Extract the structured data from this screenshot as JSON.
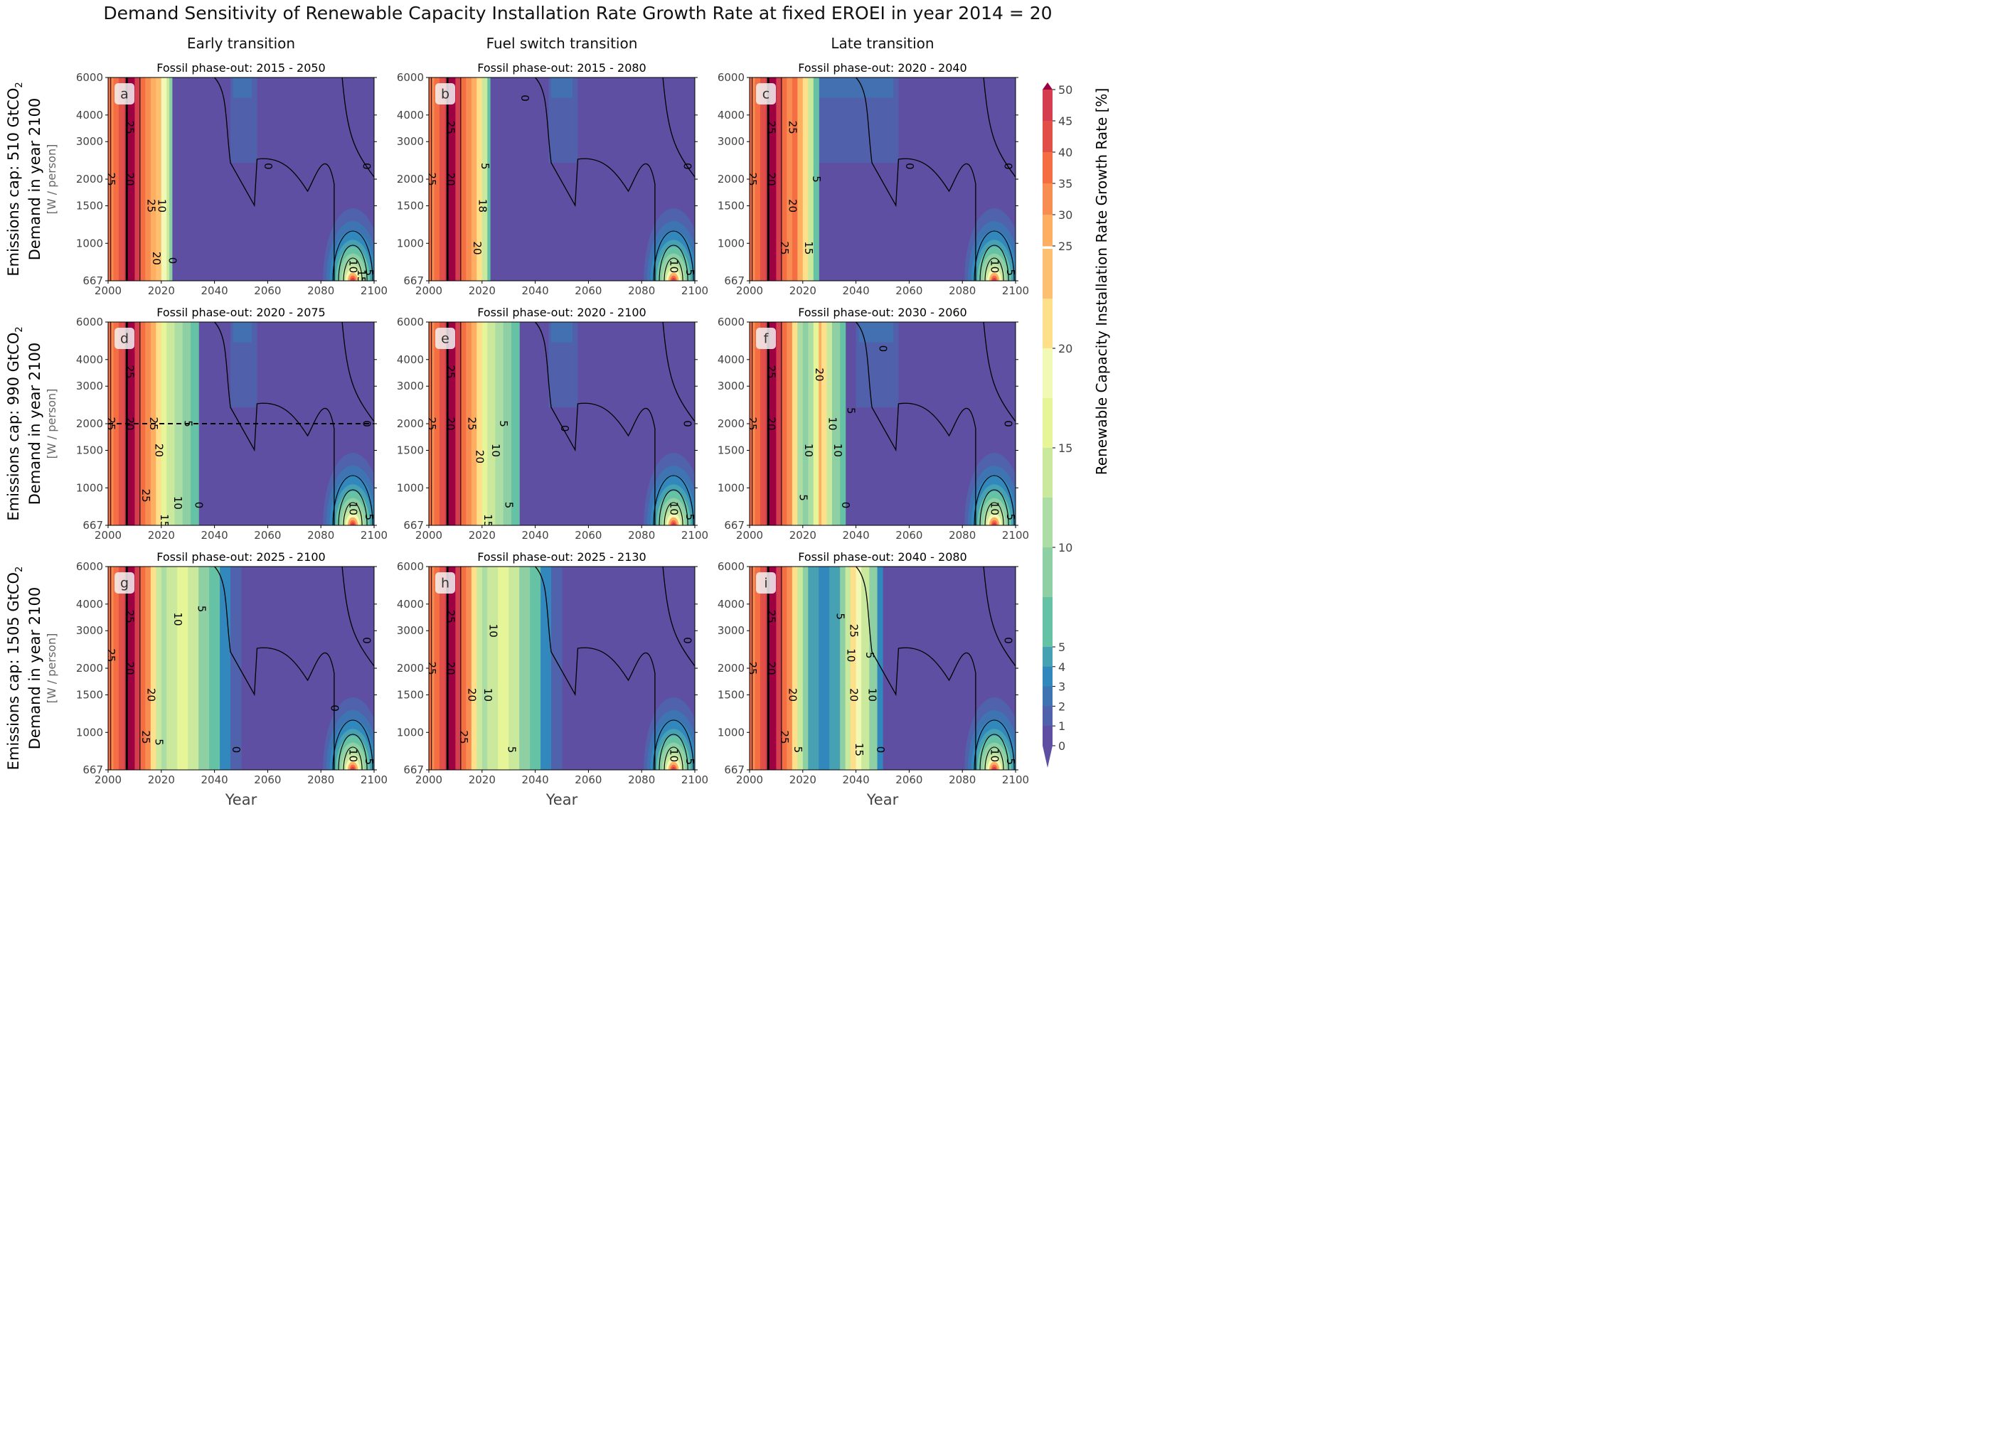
{
  "figure_title": "Demand Sensitivity of Renewable Capacity Installation Rate Growth Rate at fixed EROEI in year 2014 = 20",
  "column_titles": [
    "Early transition",
    "Fuel switch transition",
    "Late transition"
  ],
  "row_titles": [
    {
      "main": "Emissions cap: 510 GtCO",
      "sub": "2",
      "line2": "Demand in year 2100",
      "unit": "[W / person]"
    },
    {
      "main": "Emissions cap: 990 GtCO",
      "sub": "2",
      "line2": "Demand in year 2100",
      "unit": "[W / person]"
    },
    {
      "main": "Emissions cap: 1505 GtCO",
      "sub": "2",
      "line2": "Demand in year 2100",
      "unit": "[W / person]"
    }
  ],
  "colorbar": {
    "label": "Renewable Capacity Installation Rate Growth Rate [%]",
    "ticks": [
      "0",
      "1",
      "2",
      "3",
      "4",
      "5",
      "10",
      "15",
      "20",
      "25",
      "30",
      "35",
      "40",
      "45",
      "50"
    ],
    "colors": {
      "0": "#5e4fa2",
      "1": "#4f62ab",
      "2": "#3f74b2",
      "3": "#3288bd",
      "4": "#46a1b3",
      "5": "#66c2a5",
      "7.5": "#8ed0a4",
      "10": "#abdda4",
      "12.5": "#cbe99d",
      "15": "#e6f598",
      "17.5": "#f2f9b4",
      "20": "#fee08b",
      "22.5": "#fdc070",
      "25": "#fdae61",
      "30": "#f88d52",
      "35": "#f46d43",
      "40": "#e05049",
      "45": "#d53e4f",
      "50": "#9e0142"
    }
  },
  "chart_data": {
    "type": "heatmap",
    "x_axis": {
      "label": "Year",
      "range": [
        2000,
        2100
      ],
      "ticks": [
        "2000",
        "2020",
        "2040",
        "2060",
        "2080",
        "2100"
      ]
    },
    "y_axis": {
      "label": "Demand in year 2100 [W / person]",
      "scale": "log",
      "range": [
        667,
        6000
      ],
      "ticks": [
        "667",
        "1000",
        "1500",
        "2000",
        "3000",
        "4000",
        "6000"
      ]
    },
    "contour_levels": [
      0,
      5,
      10,
      15,
      20,
      25
    ],
    "panels": [
      {
        "letter": "a",
        "title": "Fossil phase-out: 2015 - 2050",
        "dashed_line_at": null,
        "labels": [
          {
            "t": "25",
            "year": 2001,
            "demand": 2000
          },
          {
            "t": "25",
            "year": 2008,
            "demand": 3500
          },
          {
            "t": "20",
            "year": 2008,
            "demand": 2000
          },
          {
            "t": "25",
            "year": 2016,
            "demand": 1500
          },
          {
            "t": "10",
            "year": 2020,
            "demand": 1500
          },
          {
            "t": "20",
            "year": 2018,
            "demand": 850
          },
          {
            "t": "0",
            "year": 2024,
            "demand": 830
          },
          {
            "t": "0",
            "year": 2060,
            "demand": 2300
          },
          {
            "t": "0",
            "year": 2097,
            "demand": 2300
          },
          {
            "t": "10",
            "year": 2092,
            "demand": 780
          },
          {
            "t": "5",
            "year": 2098,
            "demand": 730
          },
          {
            "t": "15",
            "year": 2095,
            "demand": 700
          }
        ]
      },
      {
        "letter": "b",
        "title": "Fossil phase-out: 2015 - 2080",
        "dashed_line_at": null,
        "labels": [
          {
            "t": "25",
            "year": 2001,
            "demand": 2000
          },
          {
            "t": "25",
            "year": 2008,
            "demand": 3500
          },
          {
            "t": "20",
            "year": 2008,
            "demand": 2000
          },
          {
            "t": "18",
            "year": 2020,
            "demand": 1500
          },
          {
            "t": "20",
            "year": 2018,
            "demand": 950
          },
          {
            "t": "5",
            "year": 2021,
            "demand": 2300
          },
          {
            "t": "0",
            "year": 2036,
            "demand": 4800
          },
          {
            "t": "0",
            "year": 2097,
            "demand": 2300
          },
          {
            "t": "10",
            "year": 2092,
            "demand": 780
          },
          {
            "t": "5",
            "year": 2098,
            "demand": 730
          }
        ]
      },
      {
        "letter": "c",
        "title": "Fossil phase-out: 2020 - 2040",
        "dashed_line_at": null,
        "labels": [
          {
            "t": "25",
            "year": 2001,
            "demand": 2000
          },
          {
            "t": "25",
            "year": 2008,
            "demand": 3500
          },
          {
            "t": "20",
            "year": 2008,
            "demand": 2000
          },
          {
            "t": "25",
            "year": 2016,
            "demand": 3500
          },
          {
            "t": "20",
            "year": 2016,
            "demand": 1500
          },
          {
            "t": "5",
            "year": 2025,
            "demand": 2000
          },
          {
            "t": "25",
            "year": 2013,
            "demand": 950
          },
          {
            "t": "15",
            "year": 2022,
            "demand": 950
          },
          {
            "t": "0",
            "year": 2060,
            "demand": 2300
          },
          {
            "t": "0",
            "year": 2097,
            "demand": 2300
          },
          {
            "t": "10",
            "year": 2092,
            "demand": 780
          },
          {
            "t": "5",
            "year": 2098,
            "demand": 730
          }
        ]
      },
      {
        "letter": "d",
        "title": "Fossil phase-out: 2020 - 2075",
        "dashed_line_at": 2000,
        "labels": [
          {
            "t": "25",
            "year": 2001,
            "demand": 2000
          },
          {
            "t": "25",
            "year": 2008,
            "demand": 3500
          },
          {
            "t": "20",
            "year": 2008,
            "demand": 2000
          },
          {
            "t": "25",
            "year": 2017,
            "demand": 2000
          },
          {
            "t": "20",
            "year": 2019,
            "demand": 1500
          },
          {
            "t": "5",
            "year": 2030,
            "demand": 2000
          },
          {
            "t": "25",
            "year": 2014,
            "demand": 920
          },
          {
            "t": "10",
            "year": 2026,
            "demand": 850
          },
          {
            "t": "15",
            "year": 2021,
            "demand": 700
          },
          {
            "t": "0",
            "year": 2034,
            "demand": 830
          },
          {
            "t": "0",
            "year": 2097,
            "demand": 2000
          },
          {
            "t": "10",
            "year": 2092,
            "demand": 800
          },
          {
            "t": "5",
            "year": 2098,
            "demand": 730
          }
        ]
      },
      {
        "letter": "e",
        "title": "Fossil phase-out: 2020 - 2100",
        "dashed_line_at": null,
        "labels": [
          {
            "t": "25",
            "year": 2001,
            "demand": 2000
          },
          {
            "t": "25",
            "year": 2008,
            "demand": 3500
          },
          {
            "t": "20",
            "year": 2008,
            "demand": 2000
          },
          {
            "t": "25",
            "year": 2016,
            "demand": 2000
          },
          {
            "t": "20",
            "year": 2019,
            "demand": 1400
          },
          {
            "t": "10",
            "year": 2025,
            "demand": 1500
          },
          {
            "t": "5",
            "year": 2028,
            "demand": 2000
          },
          {
            "t": "15",
            "year": 2022,
            "demand": 700
          },
          {
            "t": "5",
            "year": 2030,
            "demand": 830
          },
          {
            "t": "0",
            "year": 2051,
            "demand": 1900
          },
          {
            "t": "0",
            "year": 2097,
            "demand": 2000
          },
          {
            "t": "10",
            "year": 2092,
            "demand": 800
          },
          {
            "t": "5",
            "year": 2098,
            "demand": 730
          }
        ]
      },
      {
        "letter": "f",
        "title": "Fossil phase-out: 2030 - 2060",
        "dashed_line_at": null,
        "labels": [
          {
            "t": "25",
            "year": 2001,
            "demand": 2000
          },
          {
            "t": "25",
            "year": 2008,
            "demand": 3500
          },
          {
            "t": "20",
            "year": 2008,
            "demand": 2000
          },
          {
            "t": "20",
            "year": 2026,
            "demand": 3400
          },
          {
            "t": "10",
            "year": 2031,
            "demand": 2000
          },
          {
            "t": "5",
            "year": 2038,
            "demand": 2300
          },
          {
            "t": "10",
            "year": 2022,
            "demand": 1500
          },
          {
            "t": "10",
            "year": 2033,
            "demand": 1500
          },
          {
            "t": "5",
            "year": 2020,
            "demand": 900
          },
          {
            "t": "0",
            "year": 2036,
            "demand": 830
          },
          {
            "t": "0",
            "year": 2050,
            "demand": 4500
          },
          {
            "t": "0",
            "year": 2097,
            "demand": 2000
          },
          {
            "t": "10",
            "year": 2092,
            "demand": 800
          },
          {
            "t": "5",
            "year": 2098,
            "demand": 730
          }
        ]
      },
      {
        "letter": "g",
        "title": "Fossil phase-out: 2025 - 2100",
        "dashed_line_at": null,
        "labels": [
          {
            "t": "25",
            "year": 2001,
            "demand": 2300
          },
          {
            "t": "25",
            "year": 2008,
            "demand": 3500
          },
          {
            "t": "20",
            "year": 2008,
            "demand": 2000
          },
          {
            "t": "20",
            "year": 2016,
            "demand": 1500
          },
          {
            "t": "10",
            "year": 2026,
            "demand": 3400
          },
          {
            "t": "5",
            "year": 2035,
            "demand": 3800
          },
          {
            "t": "25",
            "year": 2014,
            "demand": 950
          },
          {
            "t": "5",
            "year": 2019,
            "demand": 900
          },
          {
            "t": "0",
            "year": 2048,
            "demand": 830
          },
          {
            "t": "0",
            "year": 2085,
            "demand": 1300
          },
          {
            "t": "0",
            "year": 2097,
            "demand": 2700
          },
          {
            "t": "10",
            "year": 2092,
            "demand": 780
          },
          {
            "t": "5",
            "year": 2098,
            "demand": 730
          }
        ]
      },
      {
        "letter": "h",
        "title": "Fossil phase-out: 2025 - 2130",
        "dashed_line_at": null,
        "labels": [
          {
            "t": "25",
            "year": 2001,
            "demand": 2000
          },
          {
            "t": "25",
            "year": 2008,
            "demand": 3500
          },
          {
            "t": "20",
            "year": 2008,
            "demand": 2000
          },
          {
            "t": "20",
            "year": 2016,
            "demand": 1500
          },
          {
            "t": "10",
            "year": 2022,
            "demand": 1500
          },
          {
            "t": "10",
            "year": 2024,
            "demand": 3000
          },
          {
            "t": "25",
            "year": 2013,
            "demand": 950
          },
          {
            "t": "5",
            "year": 2031,
            "demand": 830
          },
          {
            "t": "0",
            "year": 2097,
            "demand": 2700
          },
          {
            "t": "10",
            "year": 2092,
            "demand": 780
          },
          {
            "t": "5",
            "year": 2098,
            "demand": 730
          }
        ]
      },
      {
        "letter": "i",
        "title": "Fossil phase-out: 2040 - 2080",
        "dashed_line_at": null,
        "labels": [
          {
            "t": "25",
            "year": 2001,
            "demand": 2000
          },
          {
            "t": "25",
            "year": 2008,
            "demand": 3500
          },
          {
            "t": "20",
            "year": 2008,
            "demand": 2000
          },
          {
            "t": "20",
            "year": 2016,
            "demand": 1500
          },
          {
            "t": "5",
            "year": 2034,
            "demand": 3500
          },
          {
            "t": "25",
            "year": 2039,
            "demand": 3000
          },
          {
            "t": "10",
            "year": 2038,
            "demand": 2300
          },
          {
            "t": "5",
            "year": 2045,
            "demand": 2300
          },
          {
            "t": "20",
            "year": 2039,
            "demand": 1500
          },
          {
            "t": "10",
            "year": 2046,
            "demand": 1500
          },
          {
            "t": "25",
            "year": 2013,
            "demand": 950
          },
          {
            "t": "5",
            "year": 2018,
            "demand": 830
          },
          {
            "t": "15",
            "year": 2041,
            "demand": 830
          },
          {
            "t": "0",
            "year": 2049,
            "demand": 830
          },
          {
            "t": "0",
            "year": 2097,
            "demand": 2700
          },
          {
            "t": "10",
            "year": 2092,
            "demand": 780
          },
          {
            "t": "5",
            "year": 2098,
            "demand": 730
          }
        ]
      }
    ]
  }
}
